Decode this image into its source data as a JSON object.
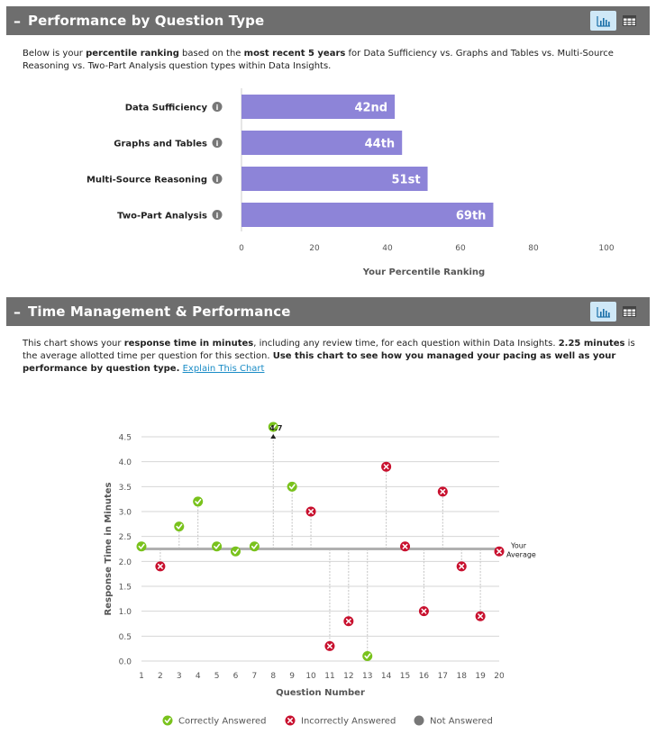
{
  "panel1": {
    "title": "Performance by Question Type",
    "desc": {
      "p1": "Below is your ",
      "b1": "percentile ranking",
      "p2": " based on the ",
      "b2": "most recent 5 years",
      "p3": " for Data Sufficiency vs. Graphs and Tables vs. Multi-Source Reasoning vs. Two-Part Analysis question types within Data Insights."
    }
  },
  "panel2": {
    "title": "Time Management & Performance",
    "desc": {
      "p1": "This chart shows your ",
      "b1": "response time in minutes",
      "p2": ", including any review time, for each question within Data Insights. ",
      "b2": "2.25 minutes",
      "p3": " is the average allotted time per question for this section. ",
      "b3": "Use this chart to see how you managed your pacing as well as your performance by question type.",
      "link": "Explain This Chart"
    }
  },
  "colors": {
    "header_bg": "#6e6e6e",
    "bar": "#8d84d8",
    "correct": "#79c21c",
    "incorrect": "#c8102e",
    "not_answered": "#777777",
    "average_line": "#b0b0b0"
  },
  "chart_data": [
    {
      "type": "bar",
      "orientation": "horizontal",
      "categories": [
        "Data Sufficiency",
        "Graphs and Tables",
        "Multi-Source Reasoning",
        "Two-Part Analysis"
      ],
      "values": [
        42,
        44,
        51,
        69
      ],
      "value_labels": [
        "42nd",
        "44th",
        "51st",
        "69th"
      ],
      "xlabel": "Your Percentile Ranking",
      "xlim": [
        0,
        100
      ],
      "xticks": [
        0,
        20,
        40,
        60,
        80,
        100
      ]
    },
    {
      "type": "scatter",
      "x": [
        1,
        2,
        3,
        4,
        5,
        6,
        7,
        8,
        9,
        10,
        11,
        12,
        13,
        14,
        15,
        16,
        17,
        18,
        19,
        20
      ],
      "y": [
        2.3,
        1.9,
        2.7,
        3.2,
        2.3,
        2.2,
        2.3,
        4.7,
        3.5,
        3.0,
        0.3,
        0.8,
        0.1,
        3.9,
        2.3,
        1.0,
        3.4,
        1.9,
        0.9,
        2.2
      ],
      "status": [
        "correct",
        "incorrect",
        "correct",
        "correct",
        "correct",
        "correct",
        "correct",
        "correct",
        "correct",
        "incorrect",
        "incorrect",
        "incorrect",
        "correct",
        "incorrect",
        "incorrect",
        "incorrect",
        "incorrect",
        "incorrect",
        "incorrect",
        "incorrect"
      ],
      "average": 2.25,
      "average_label_line1": "Your",
      "average_label_line2": "Average",
      "outlier_label": "4.7",
      "xlabel": "Question Number",
      "ylabel": "Response Time in Minutes",
      "xlim": [
        1,
        20
      ],
      "ylim": [
        0,
        4.5
      ],
      "yticks": [
        "0.0",
        "0.5",
        "1.0",
        "1.5",
        "2.0",
        "2.5",
        "3.0",
        "3.5",
        "4.0",
        "4.5"
      ],
      "legend": [
        "Correctly Answered",
        "Incorrectly Answered",
        "Not Answered"
      ]
    }
  ]
}
